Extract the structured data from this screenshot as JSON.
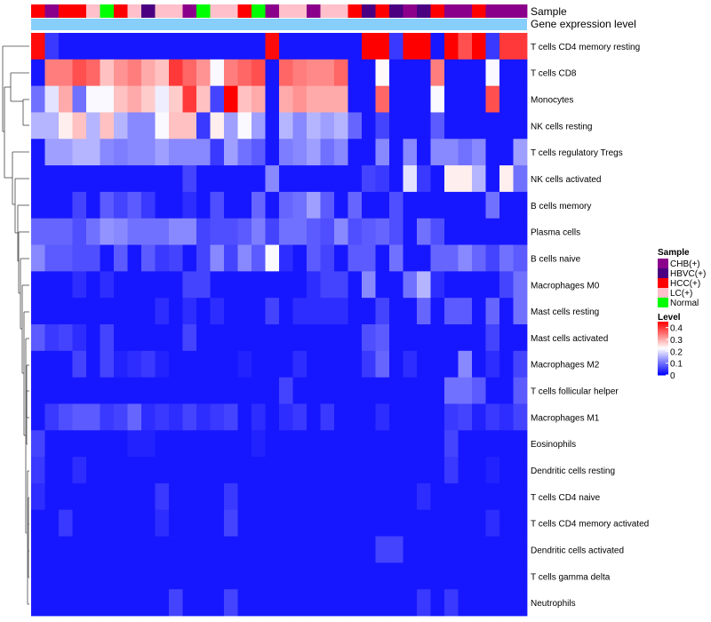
{
  "chart_data": {
    "type": "heatmap",
    "title": "",
    "annotation_tracks": [
      "Sample",
      "Gene expression level"
    ],
    "gene_expression_color": "#87CEFA",
    "sample_types": [
      "HCC(+)",
      "CHB(+)",
      "HCC(+)",
      "HCC(+)",
      "LC(+)",
      "Normal",
      "HCC(+)",
      "LC(+)",
      "HBVC(+)",
      "LC(+)",
      "LC(+)",
      "CHB(+)",
      "Normal",
      "LC(+)",
      "LC(+)",
      "HCC(+)",
      "Normal",
      "CHB(+)",
      "LC(+)",
      "LC(+)",
      "CHB(+)",
      "LC(+)",
      "LC(+)",
      "HCC(+)",
      "HBVC(+)",
      "HCC(+)",
      "HBVC(+)",
      "CHB(+)",
      "HBVC(+)",
      "HCC(+)",
      "CHB(+)",
      "CHB(+)",
      "HCC(+)",
      "CHB(+)",
      "CHB(+)",
      "CHB(+)"
    ],
    "rows": [
      "T cells CD4 memory resting",
      "T cells CD8",
      "Monocytes",
      "NK cells resting",
      "T cells regulatory  Tregs",
      "NK cells activated",
      "B cells memory",
      "Plasma cells",
      "B cells naive",
      "Macrophages M0",
      "Mast cells resting",
      "Mast cells activated",
      "Macrophages M2",
      "T cells follicular helper",
      "Macrophages M1",
      "Eosinophils",
      "Dendritic cells resting",
      "T cells CD4 naive",
      "T cells CD4 memory activated",
      "Dendritic cells activated",
      "T cells gamma delta",
      "Neutrophils"
    ],
    "values": [
      [
        0.44,
        0.05,
        0.02,
        0.02,
        0.02,
        0.02,
        0.02,
        0.02,
        0.02,
        0.02,
        0.02,
        0.02,
        0.02,
        0.02,
        0.02,
        0.02,
        0.02,
        0.44,
        0.02,
        0.02,
        0.02,
        0.02,
        0.02,
        0.02,
        0.45,
        0.45,
        0.05,
        0.45,
        0.45,
        0.02,
        0.45,
        0.38,
        0.45,
        0.05,
        0.4,
        0.4
      ],
      [
        0.02,
        0.34,
        0.34,
        0.38,
        0.36,
        0.28,
        0.32,
        0.34,
        0.3,
        0.28,
        0.4,
        0.36,
        0.32,
        0.22,
        0.34,
        0.36,
        0.38,
        0.02,
        0.36,
        0.34,
        0.33,
        0.33,
        0.36,
        0.02,
        0.02,
        0.23,
        0.02,
        0.02,
        0.02,
        0.34,
        0.02,
        0.02,
        0.02,
        0.22,
        0.02,
        0.02
      ],
      [
        0.1,
        0.2,
        0.3,
        0.1,
        0.22,
        0.22,
        0.28,
        0.3,
        0.27,
        0.21,
        0.27,
        0.4,
        0.28,
        0.06,
        0.45,
        0.28,
        0.3,
        0.02,
        0.3,
        0.32,
        0.3,
        0.3,
        0.3,
        0.02,
        0.02,
        0.36,
        0.02,
        0.02,
        0.02,
        0.22,
        0.02,
        0.02,
        0.02,
        0.38,
        0.02,
        0.02
      ],
      [
        0.16,
        0.16,
        0.24,
        0.28,
        0.16,
        0.28,
        0.16,
        0.12,
        0.12,
        0.22,
        0.28,
        0.28,
        0.05,
        0.24,
        0.14,
        0.22,
        0.14,
        0.02,
        0.16,
        0.12,
        0.16,
        0.14,
        0.16,
        0.09,
        0.02,
        0.06,
        0.02,
        0.02,
        0.02,
        0.08,
        0.02,
        0.02,
        0.02,
        0.02,
        0.02,
        0.02
      ],
      [
        0.02,
        0.14,
        0.14,
        0.16,
        0.16,
        0.12,
        0.11,
        0.12,
        0.12,
        0.14,
        0.12,
        0.12,
        0.12,
        0.05,
        0.14,
        0.1,
        0.08,
        0.02,
        0.11,
        0.12,
        0.14,
        0.1,
        0.12,
        0.02,
        0.02,
        0.12,
        0.02,
        0.12,
        0.02,
        0.12,
        0.12,
        0.1,
        0.12,
        0.02,
        0.02,
        0.14
      ],
      [
        0.02,
        0.02,
        0.02,
        0.02,
        0.02,
        0.02,
        0.02,
        0.02,
        0.02,
        0.02,
        0.02,
        0.06,
        0.02,
        0.02,
        0.02,
        0.02,
        0.02,
        0.12,
        0.02,
        0.02,
        0.02,
        0.02,
        0.02,
        0.02,
        0.06,
        0.05,
        0.02,
        0.2,
        0.05,
        0.02,
        0.24,
        0.24,
        0.16,
        0.02,
        0.24,
        0.1
      ],
      [
        0.02,
        0.02,
        0.02,
        0.06,
        0.02,
        0.08,
        0.06,
        0.08,
        0.05,
        0.02,
        0.02,
        0.04,
        0.02,
        0.07,
        0.02,
        0.02,
        0.09,
        0.02,
        0.09,
        0.1,
        0.14,
        0.08,
        0.02,
        0.09,
        0.02,
        0.02,
        0.07,
        0.02,
        0.02,
        0.02,
        0.02,
        0.02,
        0.02,
        0.1,
        0.02,
        0.02
      ],
      [
        0.09,
        0.09,
        0.09,
        0.07,
        0.1,
        0.13,
        0.12,
        0.1,
        0.1,
        0.1,
        0.12,
        0.12,
        0.06,
        0.07,
        0.07,
        0.08,
        0.11,
        0.06,
        0.1,
        0.1,
        0.08,
        0.07,
        0.12,
        0.07,
        0.08,
        0.09,
        0.07,
        0.02,
        0.1,
        0.07,
        0.02,
        0.02,
        0.02,
        0.02,
        0.02,
        0.02
      ],
      [
        0.12,
        0.08,
        0.08,
        0.07,
        0.07,
        0.02,
        0.08,
        0.02,
        0.08,
        0.05,
        0.06,
        0.02,
        0.06,
        0.12,
        0.06,
        0.12,
        0.08,
        0.22,
        0.04,
        0.02,
        0.08,
        0.06,
        0.02,
        0.08,
        0.08,
        0.02,
        0.1,
        0.02,
        0.02,
        0.09,
        0.09,
        0.12,
        0.09,
        0.06,
        0.1,
        0.08
      ],
      [
        0.02,
        0.02,
        0.02,
        0.04,
        0.02,
        0.04,
        0.02,
        0.02,
        0.02,
        0.02,
        0.02,
        0.06,
        0.06,
        0.02,
        0.02,
        0.02,
        0.02,
        0.02,
        0.02,
        0.02,
        0.04,
        0.06,
        0.06,
        0.02,
        0.12,
        0.02,
        0.02,
        0.1,
        0.16,
        0.04,
        0.02,
        0.02,
        0.02,
        0.02,
        0.06,
        0.1
      ],
      [
        0.02,
        0.02,
        0.02,
        0.02,
        0.02,
        0.02,
        0.02,
        0.02,
        0.02,
        0.04,
        0.02,
        0.04,
        0.02,
        0.04,
        0.02,
        0.02,
        0.02,
        0.06,
        0.02,
        0.04,
        0.04,
        0.04,
        0.04,
        0.02,
        0.02,
        0.06,
        0.02,
        0.02,
        0.09,
        0.02,
        0.08,
        0.08,
        0.02,
        0.09,
        0.02,
        0.1
      ],
      [
        0.08,
        0.05,
        0.06,
        0.04,
        0.02,
        0.06,
        0.02,
        0.02,
        0.02,
        0.02,
        0.02,
        0.06,
        0.02,
        0.02,
        0.02,
        0.02,
        0.02,
        0.02,
        0.02,
        0.02,
        0.02,
        0.02,
        0.02,
        0.02,
        0.07,
        0.08,
        0.02,
        0.02,
        0.02,
        0.02,
        0.02,
        0.02,
        0.02,
        0.06,
        0.02,
        0.02
      ],
      [
        0.02,
        0.02,
        0.02,
        0.06,
        0.02,
        0.06,
        0.03,
        0.04,
        0.05,
        0.03,
        0.02,
        0.02,
        0.02,
        0.02,
        0.02,
        0.03,
        0.02,
        0.02,
        0.02,
        0.04,
        0.02,
        0.02,
        0.02,
        0.02,
        0.05,
        0.09,
        0.02,
        0.04,
        0.02,
        0.02,
        0.02,
        0.12,
        0.02,
        0.04,
        0.02,
        0.06
      ],
      [
        0.02,
        0.02,
        0.02,
        0.02,
        0.02,
        0.02,
        0.02,
        0.02,
        0.02,
        0.02,
        0.02,
        0.02,
        0.02,
        0.02,
        0.02,
        0.02,
        0.02,
        0.02,
        0.06,
        0.02,
        0.02,
        0.02,
        0.02,
        0.02,
        0.02,
        0.02,
        0.02,
        0.02,
        0.02,
        0.02,
        0.1,
        0.1,
        0.08,
        0.02,
        0.02,
        0.08
      ],
      [
        0.02,
        0.05,
        0.07,
        0.08,
        0.08,
        0.05,
        0.06,
        0.09,
        0.04,
        0.05,
        0.04,
        0.06,
        0.04,
        0.05,
        0.06,
        0.02,
        0.04,
        0.02,
        0.04,
        0.05,
        0.02,
        0.05,
        0.02,
        0.02,
        0.02,
        0.04,
        0.02,
        0.02,
        0.02,
        0.02,
        0.05,
        0.06,
        0.03,
        0.05,
        0.04,
        0.06
      ],
      [
        0.06,
        0.02,
        0.02,
        0.02,
        0.02,
        0.02,
        0.02,
        0.03,
        0.03,
        0.02,
        0.02,
        0.02,
        0.02,
        0.02,
        0.02,
        0.02,
        0.03,
        0.02,
        0.02,
        0.02,
        0.02,
        0.02,
        0.02,
        0.02,
        0.02,
        0.02,
        0.02,
        0.02,
        0.02,
        0.02,
        0.06,
        0.02,
        0.02,
        0.02,
        0.02,
        0.02
      ],
      [
        0.05,
        0.02,
        0.02,
        0.04,
        0.02,
        0.02,
        0.02,
        0.02,
        0.02,
        0.02,
        0.02,
        0.02,
        0.02,
        0.02,
        0.02,
        0.02,
        0.02,
        0.02,
        0.02,
        0.02,
        0.02,
        0.02,
        0.02,
        0.02,
        0.02,
        0.02,
        0.02,
        0.02,
        0.02,
        0.02,
        0.05,
        0.02,
        0.02,
        0.03,
        0.02,
        0.02
      ],
      [
        0.04,
        0.02,
        0.02,
        0.02,
        0.02,
        0.02,
        0.02,
        0.02,
        0.02,
        0.05,
        0.02,
        0.02,
        0.02,
        0.02,
        0.05,
        0.02,
        0.02,
        0.02,
        0.02,
        0.02,
        0.02,
        0.02,
        0.02,
        0.02,
        0.02,
        0.02,
        0.02,
        0.02,
        0.04,
        0.02,
        0.02,
        0.02,
        0.02,
        0.02,
        0.02,
        0.02
      ],
      [
        0.02,
        0.02,
        0.05,
        0.02,
        0.02,
        0.02,
        0.02,
        0.02,
        0.02,
        0.04,
        0.02,
        0.02,
        0.02,
        0.02,
        0.06,
        0.02,
        0.02,
        0.02,
        0.02,
        0.02,
        0.02,
        0.02,
        0.02,
        0.02,
        0.02,
        0.02,
        0.02,
        0.02,
        0.02,
        0.02,
        0.02,
        0.02,
        0.02,
        0.04,
        0.02,
        0.02
      ],
      [
        0.02,
        0.02,
        0.02,
        0.02,
        0.02,
        0.02,
        0.02,
        0.02,
        0.02,
        0.02,
        0.02,
        0.02,
        0.02,
        0.02,
        0.02,
        0.02,
        0.02,
        0.02,
        0.02,
        0.02,
        0.02,
        0.02,
        0.02,
        0.02,
        0.02,
        0.06,
        0.06,
        0.02,
        0.02,
        0.02,
        0.02,
        0.02,
        0.02,
        0.02,
        0.02,
        0.02
      ],
      [
        0.02,
        0.02,
        0.02,
        0.02,
        0.02,
        0.02,
        0.02,
        0.02,
        0.02,
        0.02,
        0.02,
        0.02,
        0.02,
        0.02,
        0.02,
        0.02,
        0.02,
        0.02,
        0.02,
        0.02,
        0.02,
        0.02,
        0.02,
        0.02,
        0.02,
        0.02,
        0.02,
        0.02,
        0.02,
        0.02,
        0.02,
        0.02,
        0.02,
        0.02,
        0.02,
        0.02
      ],
      [
        0.02,
        0.02,
        0.02,
        0.02,
        0.02,
        0.02,
        0.02,
        0.02,
        0.02,
        0.02,
        0.06,
        0.02,
        0.02,
        0.02,
        0.06,
        0.02,
        0.02,
        0.02,
        0.02,
        0.02,
        0.02,
        0.02,
        0.02,
        0.02,
        0.02,
        0.02,
        0.02,
        0.02,
        0.05,
        0.02,
        0.05,
        0.02,
        0.02,
        0.02,
        0.02,
        0.02
      ]
    ],
    "legend_sample": {
      "title": "Sample",
      "entries": [
        {
          "label": "CHB(+)",
          "color": "#8B008B"
        },
        {
          "label": "HBVC(+)",
          "color": "#4B0082"
        },
        {
          "label": "HCC(+)",
          "color": "#FF0000"
        },
        {
          "label": "LC(+)",
          "color": "#FFC0CB"
        },
        {
          "label": "Normal",
          "color": "#00FF00"
        }
      ]
    },
    "legend_level": {
      "title": "Level",
      "ticks": [
        0.4,
        0.3,
        0.2,
        0.1,
        0
      ],
      "range": [
        0,
        0.45
      ],
      "colors": [
        "#0000FF",
        "#FFFFFF",
        "#FF0000"
      ]
    }
  }
}
